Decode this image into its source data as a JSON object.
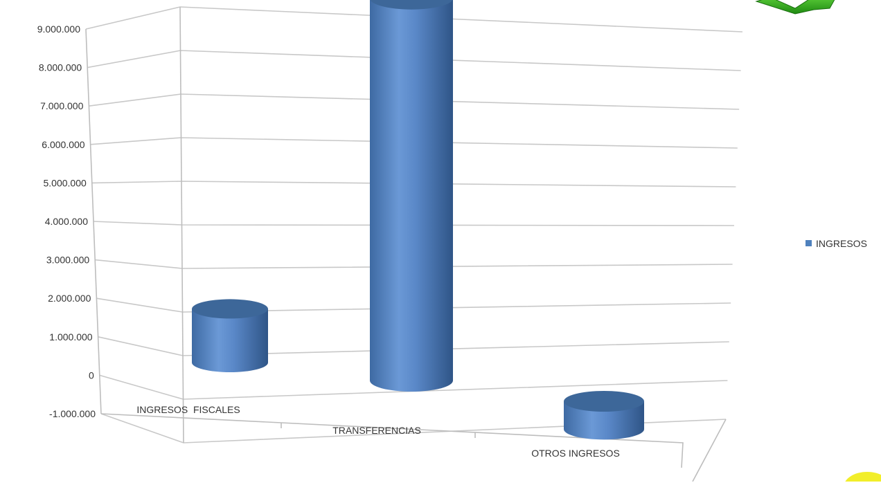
{
  "chart_data": {
    "type": "bar",
    "style": "3d-cylinder",
    "categories": [
      "INGRESOS  FISCALES",
      "TRANSFERENCIAS",
      "OTROS INGRESOS"
    ],
    "series": [
      {
        "name": "INGRESOS",
        "color": "#4f81bd",
        "values": [
          1250000,
          8900000,
          -650000
        ]
      }
    ],
    "yticks": [
      "9.000.000",
      "8.000.000",
      "7.000.000",
      "6.000.000",
      "5.000.000",
      "4.000.000",
      "3.000.000",
      "2.000.000",
      "1.000.000",
      "0",
      "-1.000.000"
    ],
    "ylim": [
      -1000000,
      9000000
    ],
    "grid": true,
    "legend": "right",
    "decorations": {
      "top_right": "green-arrow-icon",
      "bottom_right": "yellow-circle-icon"
    }
  }
}
